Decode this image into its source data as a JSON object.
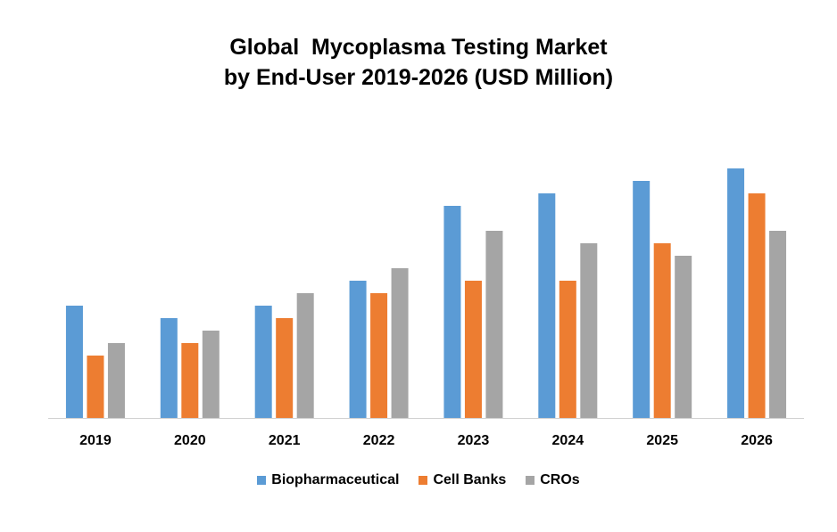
{
  "chart_data": {
    "type": "bar",
    "title_line1": "Global  Mycoplasma Testing Market",
    "title_line2": "by End-User 2019-2026 (USD Million)",
    "xlabel": "",
    "ylabel": "",
    "categories": [
      "2019",
      "2020",
      "2021",
      "2022",
      "2023",
      "2024",
      "2025",
      "2026"
    ],
    "ylim": [
      0,
      210
    ],
    "grid": false,
    "legend_position": "bottom",
    "series": [
      {
        "name": "Biopharmaceutical",
        "color": "#5B9BD5",
        "values": [
          90,
          80,
          90,
          110,
          170,
          180,
          190,
          200
        ]
      },
      {
        "name": "Cell Banks",
        "color": "#ED7D31",
        "values": [
          50,
          60,
          80,
          100,
          110,
          110,
          140,
          180
        ]
      },
      {
        "name": "CROs",
        "color": "#A5A5A5",
        "values": [
          60,
          70,
          100,
          120,
          150,
          140,
          130,
          150
        ]
      }
    ]
  }
}
